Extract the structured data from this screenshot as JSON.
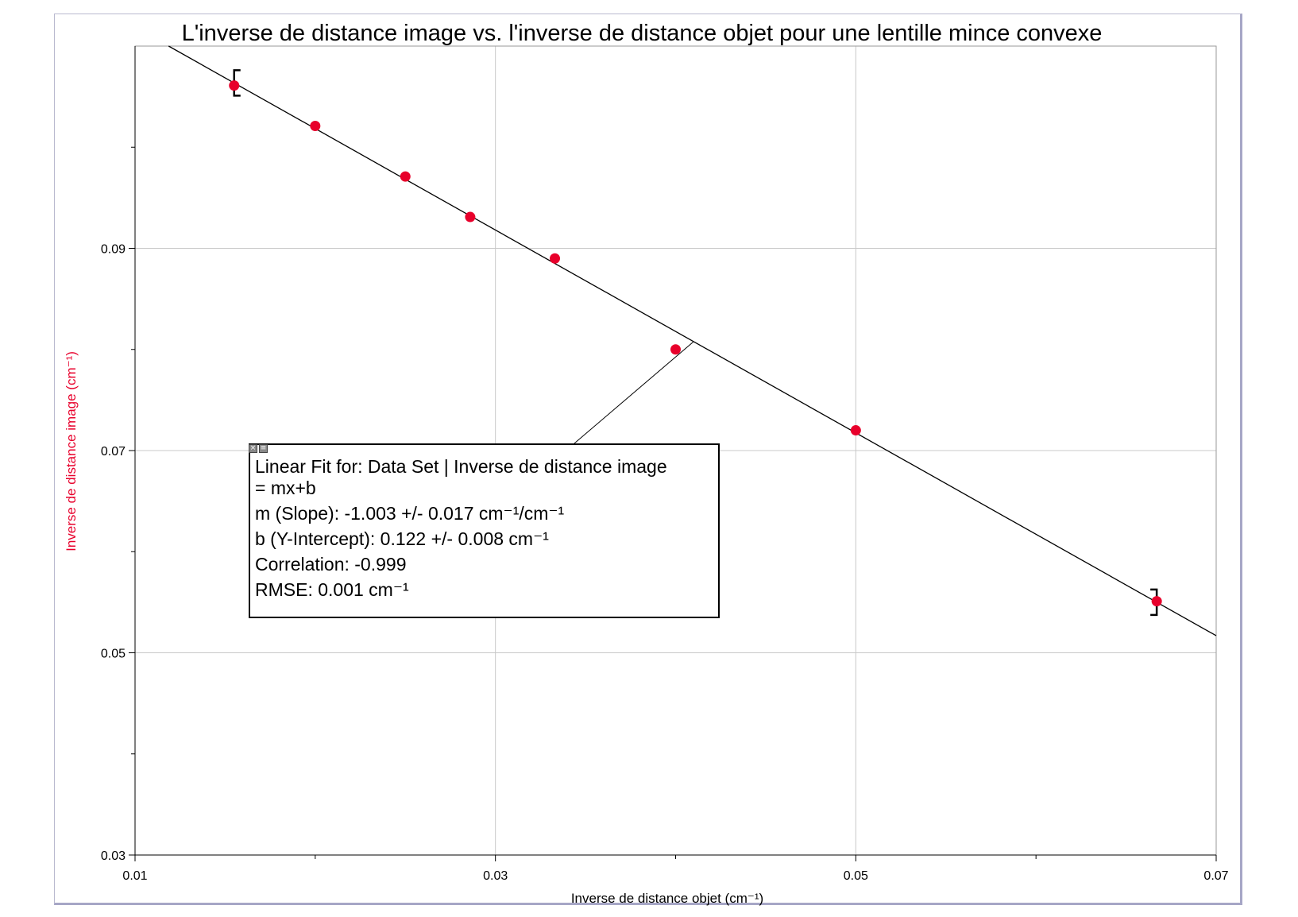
{
  "chart_data": {
    "type": "scatter",
    "title": "L'inverse de distance image vs. l'inverse de distance objet pour une lentille mince convexe",
    "xlabel": "Inverse de distance objet (cm⁻¹)",
    "ylabel": "Inverse de distance image (cm⁻¹)",
    "xlim": [
      0.01,
      0.07
    ],
    "ylim": [
      0.03,
      0.11
    ],
    "x_ticks": [
      "0.01",
      "0.03",
      "0.05",
      "0.07"
    ],
    "y_ticks": [
      "0.03",
      "0.05",
      "0.07",
      "0.09"
    ],
    "x_tick_values": [
      0.01,
      0.03,
      0.05,
      0.07
    ],
    "y_tick_values": [
      0.03,
      0.05,
      0.07,
      0.09
    ],
    "x_minor_ticks": [
      0.02,
      0.04,
      0.06
    ],
    "y_minor_ticks": [
      0.04,
      0.06,
      0.08,
      0.1
    ],
    "grid": true,
    "series": [
      {
        "points": [
          {
            "x": 0.0155,
            "y": 0.1061
          },
          {
            "x": 0.02,
            "y": 0.1021
          },
          {
            "x": 0.025,
            "y": 0.0971
          },
          {
            "x": 0.0286,
            "y": 0.0931
          },
          {
            "x": 0.0333,
            "y": 0.089
          },
          {
            "x": 0.04,
            "y": 0.08
          },
          {
            "x": 0.05,
            "y": 0.072
          },
          {
            "x": 0.0667,
            "y": 0.0551
          }
        ],
        "color": "#e8002b"
      }
    ],
    "fit_line": {
      "slope": -1.003,
      "intercept": 0.1219,
      "color": "#000000"
    },
    "fit_range": [
      0.0155,
      0.0667
    ],
    "annotation": {
      "lines": [
        "Linear Fit for: Data Set | Inverse de distance image",
        " = mx+b",
        "m (Slope): -1.003 +/- 0.017 cm⁻¹/cm⁻¹",
        "b (Y-Intercept): 0.122 +/- 0.008 cm⁻¹",
        "Correlation: -0.999",
        "RMSE: 0.001 cm⁻¹"
      ],
      "anchor_x": 0.041
    },
    "ylabel_color": "#e8002b"
  }
}
